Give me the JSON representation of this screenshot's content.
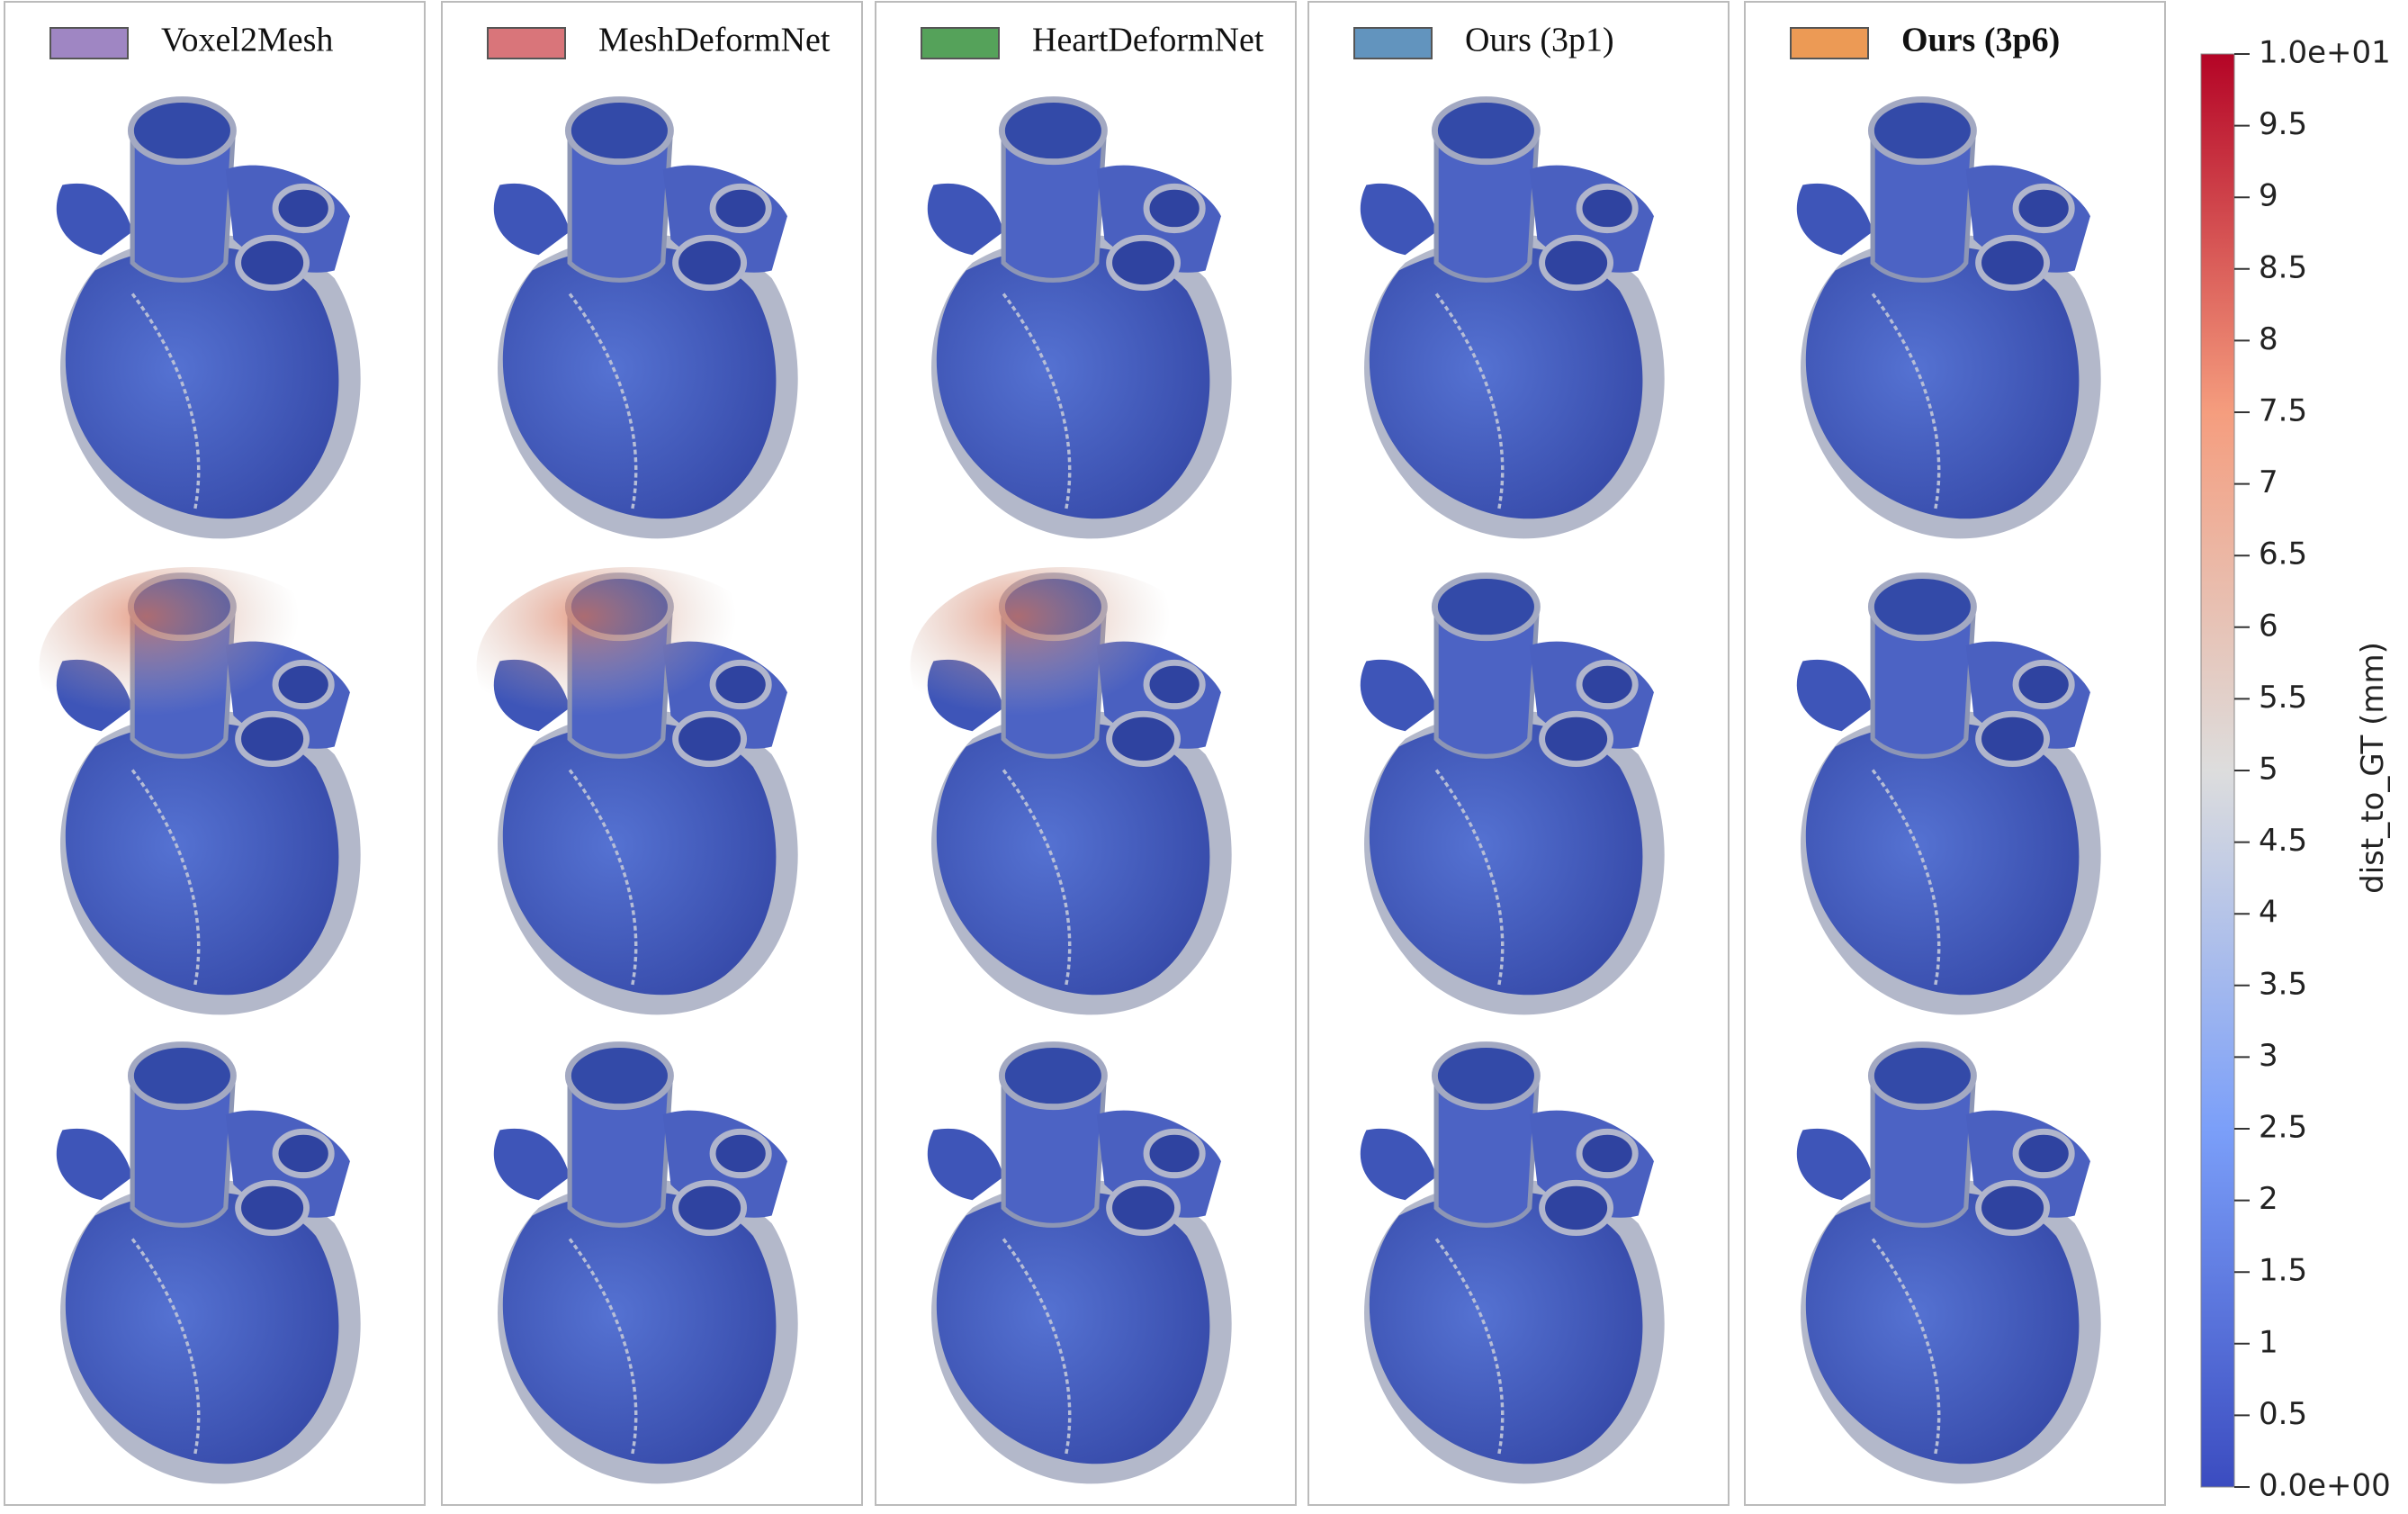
{
  "panels": [
    {
      "label": "Voxel2Mesh",
      "color": "#9f86c3",
      "bold": false
    },
    {
      "label": "MeshDeformNet",
      "color": "#d9757a",
      "bold": false
    },
    {
      "label": "HeartDeformNet",
      "color": "#55a25a",
      "bold": false
    },
    {
      "label": "Ours (3p1)",
      "color": "#6294be",
      "bold": false
    },
    {
      "label": "Ours (3p6)",
      "color": "#ec9a55",
      "bold": true
    }
  ],
  "colorbar": {
    "title": "dist_to_GT (mm)",
    "lim": [
      0,
      10
    ],
    "ticks": [
      {
        "value": 10,
        "label": "1.0e+01"
      },
      9.5,
      9,
      8.5,
      8,
      7.5,
      7,
      6.5,
      6,
      5.5,
      5,
      4.5,
      4,
      3.5,
      3,
      2.5,
      2,
      1.5,
      1,
      0.5,
      {
        "value": 0,
        "label": "0.0e+00"
      }
    ]
  }
}
